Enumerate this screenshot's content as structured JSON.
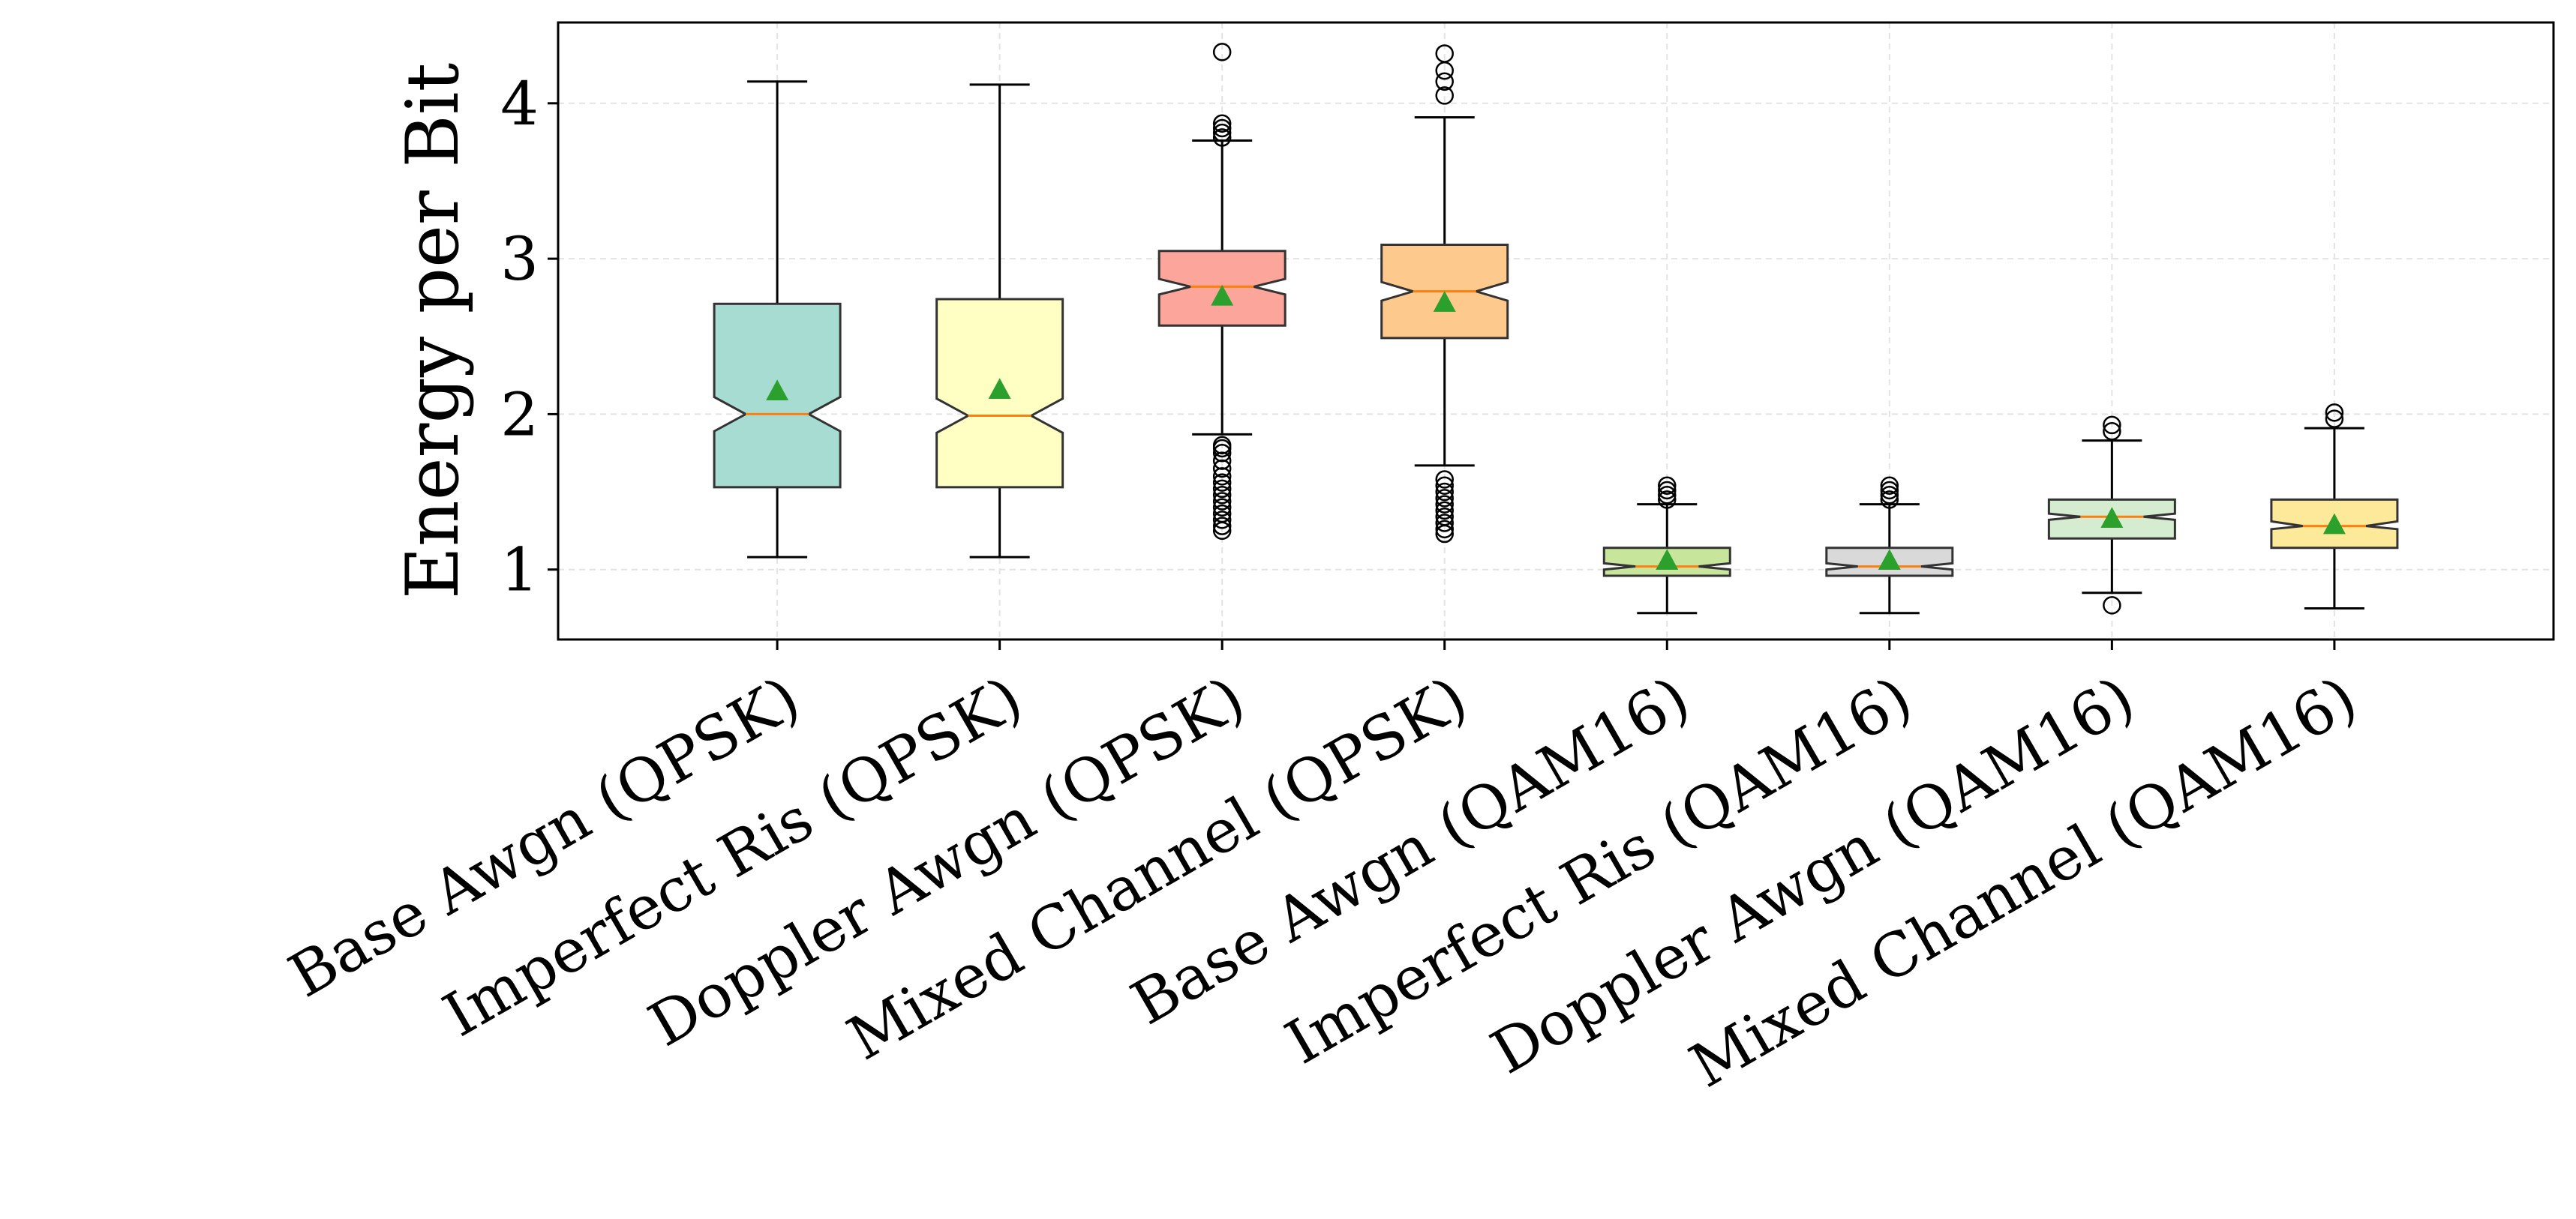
{
  "chart_data": {
    "type": "box",
    "title": "",
    "xlabel": "",
    "ylabel": "Energy per Bit",
    "ylim": [
      0.55,
      4.52
    ],
    "yticks": [
      1,
      2,
      3,
      4
    ],
    "grid": true,
    "notched": true,
    "categories": [
      "Base Awgn (QPSK)",
      "Imperfect Ris (QPSK)",
      "Doppler Awgn (QPSK)",
      "Mixed Channel (QPSK)",
      "Base Awgn (QAM16)",
      "Imperfect Ris (QAM16)",
      "Doppler Awgn (QAM16)",
      "Mixed Channel (QAM16)"
    ],
    "boxes": [
      {
        "whisker_low": 1.08,
        "q1": 1.53,
        "median": 2.0,
        "q3": 2.71,
        "whisker_high": 4.14,
        "mean": 2.15,
        "notch": [
          1.89,
          2.11
        ],
        "fliers": [],
        "color": "#a7dcd3"
      },
      {
        "whisker_low": 1.08,
        "q1": 1.53,
        "median": 1.99,
        "q3": 2.74,
        "whisker_high": 4.12,
        "mean": 2.16,
        "notch": [
          1.88,
          2.1
        ],
        "fliers": [],
        "color": "#ffffc4"
      },
      {
        "whisker_low": 1.87,
        "q1": 2.57,
        "median": 2.82,
        "q3": 3.05,
        "whisker_high": 3.76,
        "mean": 2.76,
        "notch": [
          2.77,
          2.87
        ],
        "fliers": [
          1.25,
          1.28,
          1.32,
          1.36,
          1.4,
          1.44,
          1.48,
          1.52,
          1.56,
          1.6,
          1.65,
          1.7,
          1.75,
          1.78,
          1.8,
          3.78,
          3.81,
          3.84,
          3.87,
          4.33
        ],
        "color": "#fca59b"
      },
      {
        "whisker_low": 1.67,
        "q1": 2.49,
        "median": 2.79,
        "q3": 3.09,
        "whisker_high": 3.91,
        "mean": 2.72,
        "notch": [
          2.73,
          2.85
        ],
        "fliers": [
          1.23,
          1.26,
          1.3,
          1.34,
          1.38,
          1.42,
          1.46,
          1.5,
          1.54,
          1.58,
          4.05,
          4.14,
          4.21,
          4.32
        ],
        "color": "#fdc98d"
      },
      {
        "whisker_low": 0.72,
        "q1": 0.96,
        "median": 1.02,
        "q3": 1.14,
        "whisker_high": 1.42,
        "mean": 1.06,
        "notch": [
          1.0,
          1.04
        ],
        "fliers": [
          1.45,
          1.48,
          1.51,
          1.54
        ],
        "color": "#c8e59c"
      },
      {
        "whisker_low": 0.72,
        "q1": 0.96,
        "median": 1.02,
        "q3": 1.14,
        "whisker_high": 1.42,
        "mean": 1.06,
        "notch": [
          1.0,
          1.04
        ],
        "fliers": [
          1.45,
          1.48,
          1.51,
          1.54
        ],
        "color": "#d9d9d9"
      },
      {
        "whisker_low": 0.85,
        "q1": 1.2,
        "median": 1.34,
        "q3": 1.45,
        "whisker_high": 1.83,
        "mean": 1.33,
        "notch": [
          1.32,
          1.36
        ],
        "fliers": [
          0.77,
          1.89,
          1.93
        ],
        "color": "#d6ecd0"
      },
      {
        "whisker_low": 0.75,
        "q1": 1.14,
        "median": 1.28,
        "q3": 1.45,
        "whisker_high": 1.91,
        "mean": 1.29,
        "notch": [
          1.26,
          1.31
        ],
        "fliers": [
          1.97,
          2.01
        ],
        "color": "#fde99a"
      }
    ],
    "colors": {
      "edge": "#333333",
      "median": "#ff7f0e",
      "mean_marker": "#2ca02c",
      "flier_edge": "#000000",
      "grid": "#e3e3e3"
    }
  }
}
